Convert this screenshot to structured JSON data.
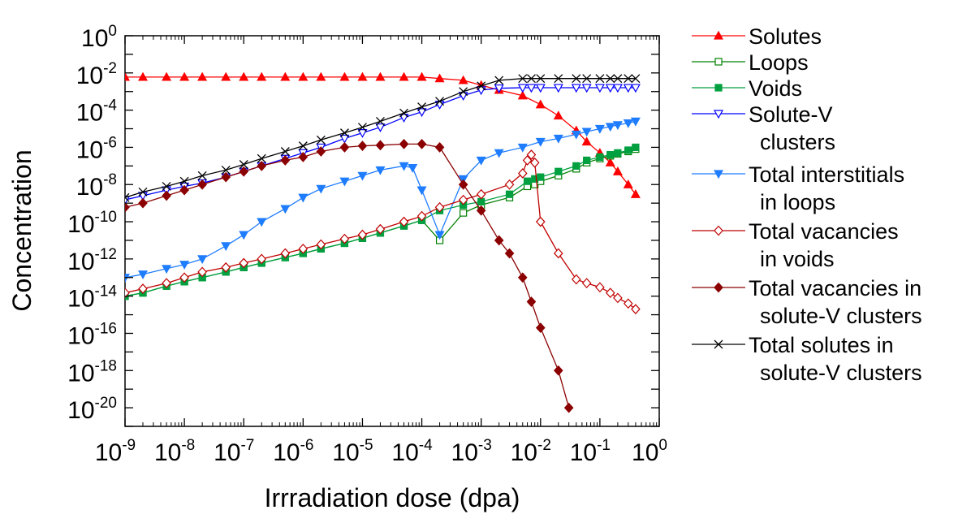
{
  "chart_data": {
    "type": "line",
    "title": "",
    "xlabel": "Irrradiation dose (dpa)",
    "ylabel": "Concentration",
    "xscale": "log",
    "yscale": "log",
    "xlim": [
      1e-09,
      1
    ],
    "ylim": [
      1e-21,
      1
    ],
    "x_ticks": [
      {
        "base": "10",
        "exp": "-9"
      },
      {
        "base": "10",
        "exp": "-8"
      },
      {
        "base": "10",
        "exp": "-7"
      },
      {
        "base": "10",
        "exp": "-6"
      },
      {
        "base": "10",
        "exp": "-5"
      },
      {
        "base": "10",
        "exp": "-4"
      },
      {
        "base": "10",
        "exp": "-3"
      },
      {
        "base": "10",
        "exp": "-2"
      },
      {
        "base": "10",
        "exp": "-1"
      },
      {
        "base": "10",
        "exp": "0"
      }
    ],
    "y_ticks": [
      {
        "base": "10",
        "exp": "0"
      },
      {
        "base": "10",
        "exp": "-2"
      },
      {
        "base": "10",
        "exp": "-4"
      },
      {
        "base": "10",
        "exp": "-6"
      },
      {
        "base": "10",
        "exp": "-8"
      },
      {
        "base": "10",
        "exp": "-10"
      },
      {
        "base": "10",
        "exp": "-12"
      },
      {
        "base": "10",
        "exp": "-14"
      },
      {
        "base": "10",
        "exp": "-16"
      },
      {
        "base": "10",
        "exp": "-18"
      },
      {
        "base": "10",
        "exp": "-20"
      }
    ],
    "grid": false,
    "legend_position": "right",
    "series": [
      {
        "name": "Solutes",
        "legend_lines": [
          "Solutes"
        ],
        "color": "#ff0000",
        "marker": "triangle-up",
        "fill": true,
        "points": [
          [
            1e-09,
            0.006
          ],
          [
            2e-09,
            0.006
          ],
          [
            5e-09,
            0.006
          ],
          [
            1e-08,
            0.006
          ],
          [
            2e-08,
            0.006
          ],
          [
            5e-08,
            0.006
          ],
          [
            1e-07,
            0.006
          ],
          [
            2e-07,
            0.006
          ],
          [
            5e-07,
            0.006
          ],
          [
            1e-06,
            0.006
          ],
          [
            2e-06,
            0.006
          ],
          [
            5e-06,
            0.006
          ],
          [
            1e-05,
            0.006
          ],
          [
            2e-05,
            0.006
          ],
          [
            5e-05,
            0.006
          ],
          [
            0.0001,
            0.006
          ],
          [
            0.0002,
            0.005
          ],
          [
            0.0005,
            0.004
          ],
          [
            0.001,
            0.0022
          ],
          [
            0.002,
            0.0012
          ],
          [
            0.005,
            0.0006
          ],
          [
            0.01,
            0.0002
          ],
          [
            0.02,
            5e-05
          ],
          [
            0.04,
            8e-06
          ],
          [
            0.06,
            2e-06
          ],
          [
            0.1,
            5e-07
          ],
          [
            0.15,
            1.5e-07
          ],
          [
            0.2,
            5e-08
          ],
          [
            0.3,
            1e-08
          ],
          [
            0.4,
            3e-09
          ]
        ]
      },
      {
        "name": "Loops",
        "legend_lines": [
          "Loops"
        ],
        "color": "#008000",
        "marker": "square",
        "fill": false,
        "points": [
          [
            1e-09,
            1e-14
          ],
          [
            2e-09,
            1.5e-14
          ],
          [
            5e-09,
            3.5e-14
          ],
          [
            1e-08,
            6e-14
          ],
          [
            2e-08,
            1e-13
          ],
          [
            5e-08,
            2e-13
          ],
          [
            1e-07,
            3.5e-13
          ],
          [
            2e-07,
            6e-13
          ],
          [
            5e-07,
            1.2e-12
          ],
          [
            1e-06,
            2e-12
          ],
          [
            2e-06,
            3.5e-12
          ],
          [
            5e-06,
            7e-12
          ],
          [
            1e-05,
            1.3e-11
          ],
          [
            2e-05,
            2.5e-11
          ],
          [
            5e-05,
            6e-11
          ],
          [
            0.0001,
            1.2e-10
          ],
          [
            0.0002,
            1e-11
          ],
          [
            0.0005,
            3e-10
          ],
          [
            0.001,
            8e-10
          ],
          [
            0.003,
            2e-09
          ],
          [
            0.006,
            8e-09
          ],
          [
            0.008,
            1e-08
          ],
          [
            0.01,
            1.5e-08
          ],
          [
            0.02,
            3e-08
          ],
          [
            0.04,
            7e-08
          ],
          [
            0.06,
            1.5e-07
          ],
          [
            0.1,
            2.5e-07
          ],
          [
            0.15,
            3.5e-07
          ],
          [
            0.2,
            4.5e-07
          ],
          [
            0.3,
            6e-07
          ],
          [
            0.4,
            8e-07
          ]
        ]
      },
      {
        "name": "Voids",
        "legend_lines": [
          "Voids"
        ],
        "color": "#00a040",
        "marker": "square",
        "fill": true,
        "points": [
          [
            1e-09,
            1e-14
          ],
          [
            2e-09,
            1.5e-14
          ],
          [
            5e-09,
            3.5e-14
          ],
          [
            1e-08,
            6e-14
          ],
          [
            2e-08,
            1e-13
          ],
          [
            5e-08,
            2e-13
          ],
          [
            1e-07,
            3.5e-13
          ],
          [
            2e-07,
            6e-13
          ],
          [
            5e-07,
            1.2e-12
          ],
          [
            1e-06,
            2e-12
          ],
          [
            2e-06,
            3.5e-12
          ],
          [
            5e-06,
            7e-12
          ],
          [
            1e-05,
            1.3e-11
          ],
          [
            2e-05,
            2.5e-11
          ],
          [
            5e-05,
            6e-11
          ],
          [
            0.0001,
            1.2e-10
          ],
          [
            0.0002,
            4e-10
          ],
          [
            0.0005,
            8e-10
          ],
          [
            0.001,
            1.2e-09
          ],
          [
            0.003,
            3e-09
          ],
          [
            0.006,
            1.5e-08
          ],
          [
            0.008,
            2e-08
          ],
          [
            0.01,
            2.5e-08
          ],
          [
            0.02,
            5e-08
          ],
          [
            0.04,
            1e-07
          ],
          [
            0.06,
            2e-07
          ],
          [
            0.1,
            3e-07
          ],
          [
            0.15,
            4e-07
          ],
          [
            0.2,
            5e-07
          ],
          [
            0.3,
            7e-07
          ],
          [
            0.4,
            1e-06
          ]
        ]
      },
      {
        "name": "Solute-V clusters",
        "legend_lines": [
          "Solute-V",
          "clusters"
        ],
        "color": "#0000ff",
        "marker": "triangle-down",
        "fill": false,
        "points": [
          [
            1e-09,
            1.5e-09
          ],
          [
            2e-09,
            2.5e-09
          ],
          [
            5e-09,
            5e-09
          ],
          [
            1e-08,
            8e-09
          ],
          [
            2e-08,
            1.2e-08
          ],
          [
            5e-08,
            2.5e-08
          ],
          [
            1e-07,
            5e-08
          ],
          [
            2e-07,
            1e-07
          ],
          [
            5e-07,
            2.5e-07
          ],
          [
            1e-06,
            5e-07
          ],
          [
            2e-06,
            1e-06
          ],
          [
            5e-06,
            3e-06
          ],
          [
            1e-05,
            6e-06
          ],
          [
            2e-05,
            1.2e-05
          ],
          [
            5e-05,
            4e-05
          ],
          [
            0.0001,
            8e-05
          ],
          [
            0.0002,
            0.0002
          ],
          [
            0.0005,
            0.0006
          ],
          [
            0.001,
            0.0012
          ],
          [
            0.002,
            0.0015
          ],
          [
            0.005,
            0.0016
          ],
          [
            0.007,
            0.0016
          ],
          [
            0.01,
            0.0016
          ],
          [
            0.02,
            0.0016
          ],
          [
            0.04,
            0.0016
          ],
          [
            0.06,
            0.0016
          ],
          [
            0.1,
            0.0016
          ],
          [
            0.15,
            0.0016
          ],
          [
            0.2,
            0.0016
          ],
          [
            0.3,
            0.0016
          ],
          [
            0.4,
            0.0016
          ]
        ]
      },
      {
        "name": "Total interstitials in loops",
        "legend_lines": [
          "Total interstitials",
          "in loops"
        ],
        "color": "#1e7cff",
        "marker": "triangle-down",
        "fill": true,
        "points": [
          [
            1e-09,
            1e-13
          ],
          [
            2e-09,
            1.5e-13
          ],
          [
            5e-09,
            3e-13
          ],
          [
            1e-08,
            5e-13
          ],
          [
            2e-08,
            1e-12
          ],
          [
            5e-08,
            5e-12
          ],
          [
            1e-07,
            2e-11
          ],
          [
            2e-07,
            1e-10
          ],
          [
            5e-07,
            5e-10
          ],
          [
            1e-06,
            2e-09
          ],
          [
            2e-06,
            6e-09
          ],
          [
            5e-06,
            1.5e-08
          ],
          [
            1e-05,
            3e-08
          ],
          [
            2e-05,
            6e-08
          ],
          [
            5e-05,
            1e-07
          ],
          [
            7e-05,
            8e-08
          ],
          [
            0.0001,
            5e-09
          ],
          [
            0.0002,
            2e-11
          ],
          [
            0.0005,
            2e-08
          ],
          [
            0.001,
            2e-07
          ],
          [
            0.002,
            5e-07
          ],
          [
            0.005,
            1e-06
          ],
          [
            0.01,
            2e-06
          ],
          [
            0.02,
            3e-06
          ],
          [
            0.04,
            5e-06
          ],
          [
            0.06,
            7e-06
          ],
          [
            0.1,
            1e-05
          ],
          [
            0.15,
            1.3e-05
          ],
          [
            0.2,
            1.6e-05
          ],
          [
            0.3,
            2e-05
          ],
          [
            0.4,
            2.5e-05
          ]
        ]
      },
      {
        "name": "Total vacancies in voids",
        "legend_lines": [
          "Total vacancies",
          "in voids"
        ],
        "color": "#c00000",
        "marker": "diamond",
        "fill": false,
        "points": [
          [
            1e-09,
            1.5e-14
          ],
          [
            2e-09,
            2.5e-14
          ],
          [
            5e-09,
            5e-14
          ],
          [
            1e-08,
            1e-13
          ],
          [
            2e-08,
            2e-13
          ],
          [
            5e-08,
            3.5e-13
          ],
          [
            1e-07,
            6e-13
          ],
          [
            2e-07,
            1e-12
          ],
          [
            5e-07,
            2e-12
          ],
          [
            1e-06,
            3.5e-12
          ],
          [
            2e-06,
            6e-12
          ],
          [
            5e-06,
            1.2e-11
          ],
          [
            1e-05,
            2e-11
          ],
          [
            2e-05,
            4e-11
          ],
          [
            5e-05,
            1e-10
          ],
          [
            0.0001,
            2e-10
          ],
          [
            0.0002,
            6e-10
          ],
          [
            0.0005,
            1.5e-09
          ],
          [
            0.001,
            3e-09
          ],
          [
            0.003,
            1e-08
          ],
          [
            0.005,
            4e-08
          ],
          [
            0.006,
            2e-07
          ],
          [
            0.007,
            4e-07
          ],
          [
            0.008,
            1.5e-07
          ],
          [
            0.01,
            1e-10
          ],
          [
            0.02,
            2e-12
          ],
          [
            0.04,
            8e-14
          ],
          [
            0.06,
            5e-14
          ],
          [
            0.1,
            3e-14
          ],
          [
            0.15,
            1.5e-14
          ],
          [
            0.2,
            8e-15
          ],
          [
            0.3,
            4e-15
          ],
          [
            0.4,
            2e-15
          ]
        ]
      },
      {
        "name": "Total vacancies in solute-V clusters",
        "legend_lines": [
          "Total vacancies in",
          "solute-V clusters"
        ],
        "color": "#8b0000",
        "marker": "diamond",
        "fill": true,
        "points": [
          [
            1e-09,
            6e-10
          ],
          [
            2e-09,
            1e-09
          ],
          [
            5e-09,
            2.5e-09
          ],
          [
            1e-08,
            5e-09
          ],
          [
            2e-08,
            1e-08
          ],
          [
            5e-08,
            2.5e-08
          ],
          [
            1e-07,
            5e-08
          ],
          [
            2e-07,
            1e-07
          ],
          [
            5e-07,
            2e-07
          ],
          [
            1e-06,
            3e-07
          ],
          [
            2e-06,
            6e-07
          ],
          [
            5e-06,
            1e-06
          ],
          [
            1e-05,
            1.2e-06
          ],
          [
            2e-05,
            1.3e-06
          ],
          [
            5e-05,
            1.5e-06
          ],
          [
            0.0001,
            1.5e-06
          ],
          [
            0.0002,
            1e-06
          ],
          [
            0.0005,
            1e-08
          ],
          [
            0.001,
            4e-10
          ],
          [
            0.002,
            1e-11
          ],
          [
            0.003,
            2e-12
          ],
          [
            0.005,
            1e-13
          ],
          [
            0.007,
            5e-15
          ],
          [
            0.01,
            2e-16
          ],
          [
            0.02,
            1e-18
          ],
          [
            0.03,
            1e-20
          ]
        ]
      },
      {
        "name": "Total solutes in solute-V clusters",
        "legend_lines": [
          "Total solutes in",
          "solute-V clusters"
        ],
        "color": "#000000",
        "marker": "x",
        "fill": false,
        "points": [
          [
            1e-09,
            2e-09
          ],
          [
            2e-09,
            4e-09
          ],
          [
            5e-09,
            8e-09
          ],
          [
            1e-08,
            1.5e-08
          ],
          [
            2e-08,
            3e-08
          ],
          [
            5e-08,
            6e-08
          ],
          [
            1e-07,
            1.2e-07
          ],
          [
            2e-07,
            2.5e-07
          ],
          [
            5e-07,
            6e-07
          ],
          [
            1e-06,
            1.2e-06
          ],
          [
            2e-06,
            2.5e-06
          ],
          [
            5e-06,
            6e-06
          ],
          [
            1e-05,
            1.2e-05
          ],
          [
            2e-05,
            2.5e-05
          ],
          [
            5e-05,
            7e-05
          ],
          [
            0.0001,
            0.00015
          ],
          [
            0.0002,
            0.0003
          ],
          [
            0.0005,
            0.001
          ],
          [
            0.001,
            0.002
          ],
          [
            0.002,
            0.004
          ],
          [
            0.005,
            0.005
          ],
          [
            0.007,
            0.005
          ],
          [
            0.01,
            0.005
          ],
          [
            0.02,
            0.005
          ],
          [
            0.04,
            0.005
          ],
          [
            0.06,
            0.005
          ],
          [
            0.1,
            0.005
          ],
          [
            0.15,
            0.005
          ],
          [
            0.2,
            0.005
          ],
          [
            0.3,
            0.005
          ],
          [
            0.4,
            0.005
          ]
        ]
      }
    ]
  }
}
